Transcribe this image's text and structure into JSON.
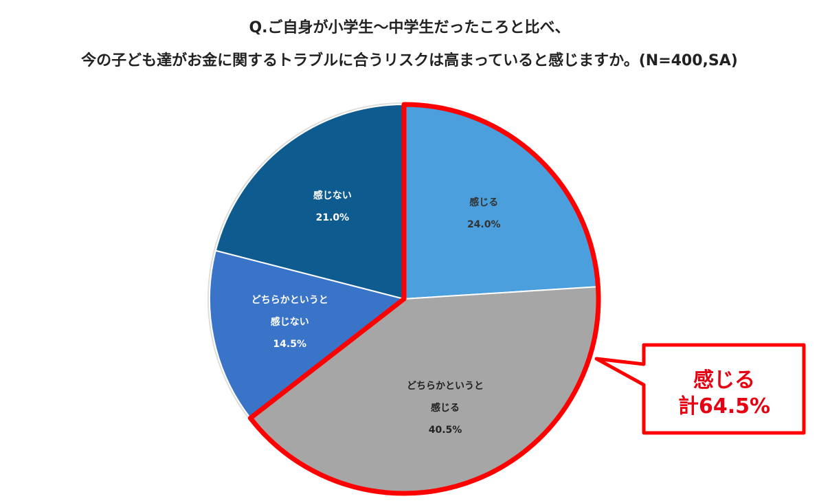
{
  "chart_data": {
    "type": "pie",
    "title_lines": [
      "Q.ご自身が小学生〜中学生だったころと比べ、",
      "今の子ども達がお金に関するトラブルに合うリスクは高まっていると感じますか。(N=400,SA)"
    ],
    "categories": [
      "感じる",
      "どちらかというと感じる",
      "どちらかというと感じない",
      "感じない"
    ],
    "values": [
      24.0,
      40.5,
      14.5,
      21.0
    ],
    "value_labels": [
      "24.0%",
      "40.5%",
      "14.5%",
      "21.0%"
    ],
    "colors": [
      "#4a9fdc",
      "#a6a6a6",
      "#3a74c8",
      "#0d5b8f"
    ],
    "label_colors": [
      "#333333",
      "#222222",
      "#ffffff",
      "#ffffff"
    ],
    "annotation_lines": [
      "感じる",
      "計64.5%"
    ],
    "highlight_color": "#ff0000"
  }
}
